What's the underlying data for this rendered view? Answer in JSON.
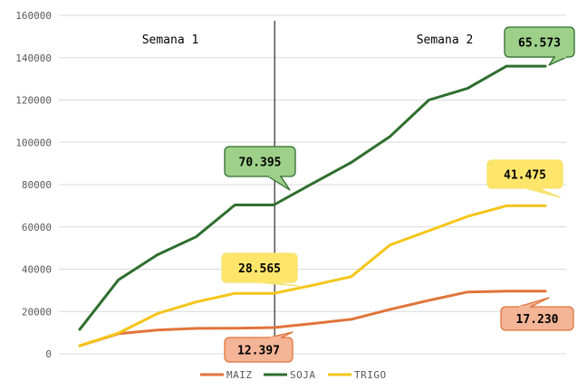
{
  "chart_data": {
    "type": "line",
    "x": [
      1,
      2,
      3,
      4,
      5,
      6,
      7,
      8,
      9,
      10,
      11,
      12,
      13
    ],
    "ylim": [
      0,
      160000
    ],
    "yticks": [
      0,
      20000,
      40000,
      60000,
      80000,
      100000,
      120000,
      140000,
      160000
    ],
    "ytick_labels": [
      "0",
      "20000",
      "40000",
      "60000",
      "80000",
      "100000",
      "120000",
      "140000",
      "160000"
    ],
    "grid": true,
    "legend": "bottom",
    "divider_after_x": 6,
    "sections": [
      {
        "label": "Semana 1"
      },
      {
        "label": "Semana 2"
      }
    ],
    "series": [
      {
        "name": "MAIZ",
        "color": "#E0743A",
        "values": [
          3800,
          9500,
          11200,
          12000,
          12100,
          12397,
          14300,
          16300,
          21000,
          25300,
          29200,
          29600,
          29600
        ]
      },
      {
        "name": "SOJA",
        "color": "#2E6E2E",
        "values": [
          11500,
          35000,
          46800,
          55300,
          70395,
          70395,
          80500,
          90500,
          102800,
          120000,
          125500,
          136000,
          136000
        ]
      },
      {
        "name": "TRIGO",
        "color": "#F5C518",
        "values": [
          3800,
          9800,
          19000,
          24500,
          28565,
          28565,
          32400,
          36500,
          51500,
          58200,
          65000,
          70000,
          70000
        ]
      }
    ],
    "annotations": [
      {
        "text": "70.395",
        "series": "SOJA",
        "fill": "#9ED08A",
        "stroke": "#2E6E2E"
      },
      {
        "text": "65.573",
        "series": "SOJA",
        "fill": "#9ED08A",
        "stroke": "#2E6E2E"
      },
      {
        "text": "41.475",
        "series": "TRIGO",
        "fill": "#FFE66B",
        "stroke": "#F5E26E"
      },
      {
        "text": "28.565",
        "series": "TRIGO",
        "fill": "#FFE66B",
        "stroke": "#F5E26E"
      },
      {
        "text": "12.397",
        "series": "MAIZ",
        "fill": "#F4B496",
        "stroke": "#E0743A"
      },
      {
        "text": "17.230",
        "series": "MAIZ",
        "fill": "#F4B496",
        "stroke": "#E0743A"
      }
    ]
  }
}
